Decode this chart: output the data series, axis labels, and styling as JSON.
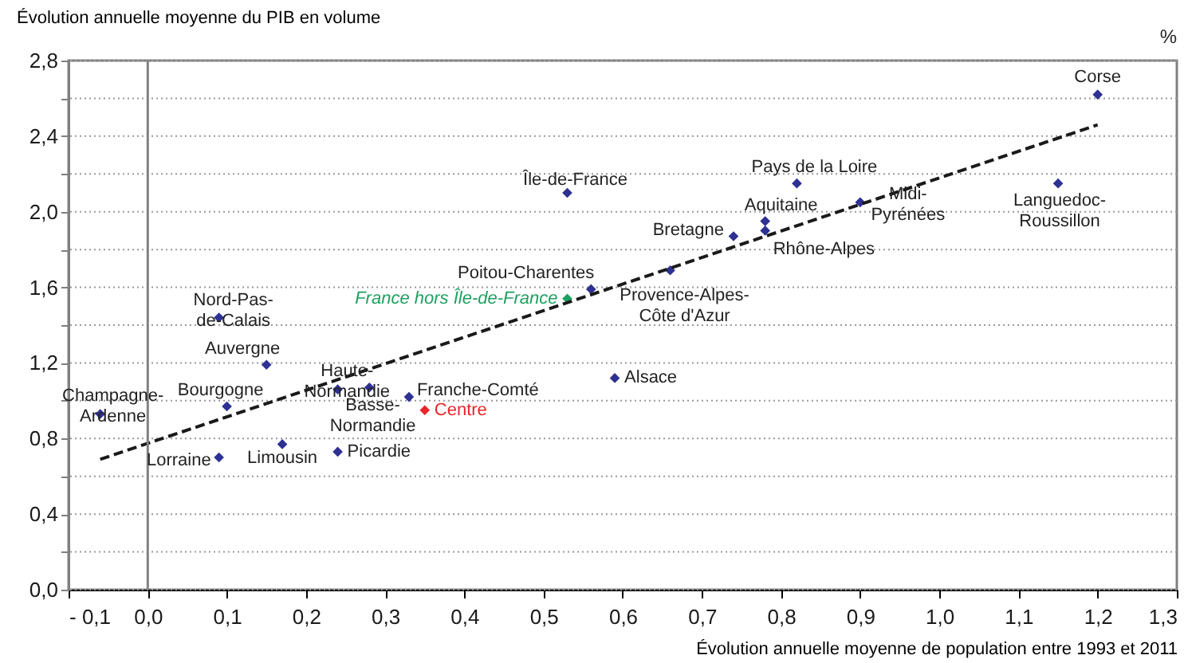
{
  "chart_data": {
    "type": "scatter",
    "ylabel": "Évolution annuelle moyenne du PIB en volume",
    "xlabel": "Évolution annuelle moyenne de population entre 1993 et 2011",
    "marker": "diamond",
    "grid": "y",
    "xlim": [
      -0.1,
      1.3
    ],
    "ylim": [
      0,
      2.8
    ],
    "xticks": [
      {
        "value": -0.1,
        "label": "- 0,1"
      },
      {
        "value": 0,
        "label": "0,0"
      },
      {
        "value": 0.1,
        "label": "0,1"
      },
      {
        "value": 0.2,
        "label": "0,2"
      },
      {
        "value": 0.3,
        "label": "0,3"
      },
      {
        "value": 0.4,
        "label": "0,4"
      },
      {
        "value": 0.5,
        "label": "0,5"
      },
      {
        "value": 0.6,
        "label": "0,6"
      },
      {
        "value": 0.7,
        "label": "0,7"
      },
      {
        "value": 0.8,
        "label": "0,8"
      },
      {
        "value": 0.9,
        "label": "0,9"
      },
      {
        "value": 1.0,
        "label": "1,0"
      },
      {
        "value": 1.1,
        "label": "1,1"
      },
      {
        "value": 1.2,
        "label": "1,2"
      },
      {
        "value": 1.3,
        "label": "1,3"
      }
    ],
    "yticks": [
      {
        "value": 0,
        "label": "0,0"
      },
      {
        "value": 0.2,
        "label": null
      },
      {
        "value": 0.4,
        "label": "0,4"
      },
      {
        "value": 0.6,
        "label": null
      },
      {
        "value": 0.8,
        "label": "0,8"
      },
      {
        "value": 1.0,
        "label": null
      },
      {
        "value": 1.2,
        "label": "1,2"
      },
      {
        "value": 1.4,
        "label": null
      },
      {
        "value": 1.6,
        "label": "1,6"
      },
      {
        "value": 1.8,
        "label": null
      },
      {
        "value": 2.0,
        "label": "2,0"
      },
      {
        "value": 2.2,
        "label": null
      },
      {
        "value": 2.4,
        "label": "2,4"
      },
      {
        "value": 2.6,
        "label": null
      },
      {
        "value": 2.8,
        "label": "2,8"
      }
    ],
    "ref_lines": [
      {
        "axis": "x",
        "value": 0,
        "color": "#808080"
      }
    ],
    "series": [
      {
        "color": "#2e3192",
        "x": [
          -0.06,
          0.09,
          0.15,
          0.1,
          0.09,
          0.17,
          0.24,
          0.24,
          0.28,
          0.33,
          0.59,
          0.66,
          0.56,
          0.53,
          0.74,
          0.78,
          0.78,
          0.82,
          0.9,
          1.15,
          1.2
        ],
        "values": [
          0.93,
          1.44,
          1.19,
          0.97,
          0.7,
          0.77,
          0.73,
          1.06,
          1.07,
          1.02,
          1.12,
          1.69,
          1.59,
          2.1,
          1.87,
          1.95,
          1.9,
          2.15,
          2.05,
          2.15,
          2.62
        ]
      },
      {
        "name": "France hors Île-de-France",
        "color": "#1fa060",
        "x": [
          0.53
        ],
        "values": [
          1.54
        ]
      },
      {
        "name": "Centre",
        "color": "#e8262a",
        "x": [
          0.35
        ],
        "values": [
          0.95
        ]
      },
      {
        "type": "line",
        "marker": "none",
        "line_style": "dashed",
        "color": "#1a1a1a",
        "x": [
          -0.06,
          1.2
        ],
        "values": [
          0.69,
          2.46
        ]
      }
    ],
    "annotations": [
      "%",
      {
        "text": "Champagne-\nArdenne",
        "x": -0.06,
        "y": 0.93
      },
      {
        "text": "Nord-Pas-\nde-Calais",
        "x": 0.09,
        "y": 1.44
      },
      {
        "text": "Auvergne",
        "x": 0.15,
        "y": 1.19
      },
      {
        "text": "Bourgogne",
        "x": 0.1,
        "y": 0.97
      },
      {
        "text": "Lorraine",
        "x": 0.09,
        "y": 0.7
      },
      {
        "text": "Limousin",
        "x": 0.17,
        "y": 0.77
      },
      {
        "text": "Picardie",
        "x": 0.24,
        "y": 0.73
      },
      {
        "text": "Basse-\nNormandie",
        "x": 0.24,
        "y": 1.06
      },
      {
        "text": "Haute-\nNormandie",
        "x": 0.28,
        "y": 1.07
      },
      {
        "text": "Franche-Comté",
        "x": 0.33,
        "y": 1.02
      },
      {
        "text": "Alsace",
        "x": 0.59,
        "y": 1.12
      },
      {
        "text": "Provence-Alpes-\nCôte d'Azur",
        "x": 0.66,
        "y": 1.69
      },
      {
        "text": "Poitou-Charentes",
        "x": 0.56,
        "y": 1.59
      },
      {
        "text": "Île-de-France",
        "x": 0.53,
        "y": 2.1
      },
      {
        "text": "Bretagne",
        "x": 0.74,
        "y": 1.87
      },
      {
        "text": "Aquitaine",
        "x": 0.78,
        "y": 1.95
      },
      {
        "text": "Rhône-Alpes",
        "x": 0.78,
        "y": 1.9
      },
      {
        "text": "Pays de la Loire",
        "x": 0.82,
        "y": 2.15
      },
      {
        "text": "Midi-\nPyrénées",
        "x": 0.9,
        "y": 2.05
      },
      {
        "text": "Languedoc-\nRoussillon",
        "x": 1.15,
        "y": 2.15
      },
      {
        "text": "Corse",
        "x": 1.2,
        "y": 2.62
      }
    ]
  }
}
